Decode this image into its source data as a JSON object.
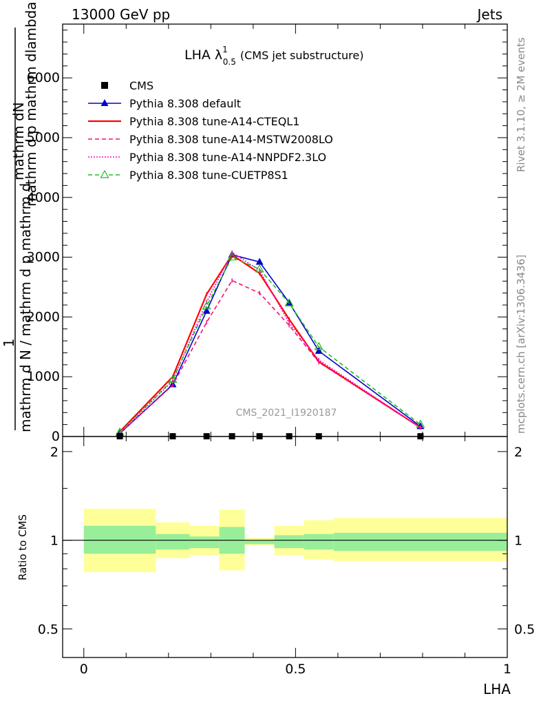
{
  "header": {
    "energy_label": "13000 GeV pp",
    "category_label": "Jets",
    "rivet_label": "Rivet 3.1.10, ≥ 2M events",
    "mcplots_label": "mcplots.cern.ch [arXiv:1306.3436]",
    "analysis_id": "CMS_2021_I1920187"
  },
  "chart_data": [
    {
      "type": "line",
      "title": "LHA λ",
      "title_sup": "1",
      "title_sub": "0.5",
      "title_note": "(CMS jet substructure)",
      "ylabel_numerator": "mathrm dN",
      "ylabel_numerator_2": "mathrm d p  mathrm dlambda",
      "ylabel_numerator_2_sub": "T",
      "ylabel_denominator": "mathrm d N / mathrm d p  mathrm d",
      "ylabel_denominator_sub": "T",
      "ylabel_prefix": "1",
      "xlabel": "LHA",
      "xlim": [
        -0.05,
        1.0
      ],
      "ylim": [
        0,
        6900
      ],
      "yticks": [
        0,
        1000,
        2000,
        3000,
        4000,
        5000,
        6000
      ],
      "ytick_labels": [
        "0",
        "1000",
        "2000",
        "3000",
        "4000",
        "5000",
        "6000"
      ],
      "legend_position": "top-left",
      "data_series": {
        "name": "CMS",
        "x": [
          0.085,
          0.21,
          0.29,
          0.35,
          0.415,
          0.485,
          0.555,
          0.795
        ],
        "y": [
          4,
          4,
          4,
          4,
          4,
          4,
          4,
          4
        ]
      },
      "series": [
        {
          "name": "Pythia 8.308 default",
          "color": "#0000cc",
          "style": "solid",
          "marker": "triangle",
          "x": [
            0.085,
            0.21,
            0.29,
            0.35,
            0.415,
            0.485,
            0.555,
            0.795
          ],
          "y": [
            50,
            870,
            2100,
            3040,
            2920,
            2240,
            1430,
            170
          ]
        },
        {
          "name": "Pythia 8.308 tune-A14-CTEQL1",
          "color": "#ff0000",
          "style": "solid",
          "marker": "none",
          "x": [
            0.085,
            0.21,
            0.29,
            0.35,
            0.415,
            0.485,
            0.555,
            0.795
          ],
          "y": [
            80,
            1000,
            2380,
            3040,
            2730,
            1960,
            1250,
            150
          ]
        },
        {
          "name": "Pythia 8.308 tune-A14-MSTW2008LO",
          "color": "#ee1177",
          "style": "dashed",
          "marker": "none",
          "x": [
            0.085,
            0.21,
            0.29,
            0.35,
            0.415,
            0.485,
            0.555,
            0.795
          ],
          "y": [
            50,
            860,
            1910,
            2610,
            2400,
            1860,
            1240,
            150
          ]
        },
        {
          "name": "Pythia 8.308 tune-A14-NNPDF2.3LO",
          "color": "#ff00cc",
          "style": "dotted",
          "marker": "none",
          "x": [
            0.085,
            0.21,
            0.29,
            0.35,
            0.415,
            0.485,
            0.555,
            0.795
          ],
          "y": [
            60,
            930,
            2250,
            3080,
            2780,
            1900,
            1280,
            150
          ]
        },
        {
          "name": "Pythia 8.308 tune-CUETP8S1",
          "color": "#22bb22",
          "style": "dashed",
          "marker": "open-triangle",
          "x": [
            0.085,
            0.21,
            0.29,
            0.35,
            0.415,
            0.485,
            0.555,
            0.795
          ],
          "y": [
            70,
            950,
            2180,
            3000,
            2800,
            2230,
            1500,
            200
          ]
        }
      ]
    },
    {
      "type": "area",
      "ylabel": "Ratio to CMS",
      "xlabel": "LHA",
      "xlim": [
        -0.05,
        1.0
      ],
      "ylim": [
        0.4,
        2.25
      ],
      "log_y": true,
      "yticks": [
        0.5,
        1,
        2
      ],
      "ytick_labels": [
        "0.5",
        "1",
        "2"
      ],
      "xticks": [
        0,
        0.5,
        1
      ],
      "xtick_labels": [
        "0",
        "0.5",
        "1"
      ],
      "reference_line": 1,
      "bands": {
        "edges": [
          0.0,
          0.17,
          0.25,
          0.32,
          0.38,
          0.45,
          0.52,
          0.59,
          1.0
        ],
        "inner_color": "#99ee99",
        "outer_color": "#ffff99",
        "inner": [
          [
            0.9,
            1.12
          ],
          [
            0.93,
            1.05
          ],
          [
            0.94,
            1.03
          ],
          [
            0.9,
            1.11
          ],
          [
            0.97,
            1.0
          ],
          [
            0.94,
            1.04
          ],
          [
            0.93,
            1.05
          ],
          [
            0.92,
            1.06
          ],
          [
            0.92,
            1.06
          ]
        ],
        "outer": [
          [
            0.78,
            1.28
          ],
          [
            0.87,
            1.15
          ],
          [
            0.89,
            1.12
          ],
          [
            0.79,
            1.27
          ],
          [
            0.96,
            1.02
          ],
          [
            0.89,
            1.12
          ],
          [
            0.86,
            1.17
          ],
          [
            0.85,
            1.19
          ],
          [
            0.85,
            1.19
          ]
        ]
      }
    }
  ]
}
